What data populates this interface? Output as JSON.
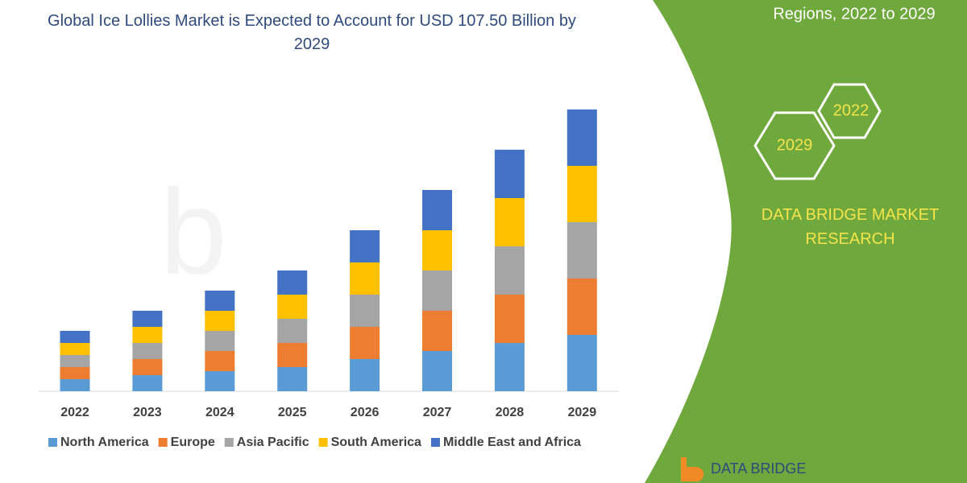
{
  "chart_data": {
    "type": "stacked-bar",
    "title": "Global Ice Lollies Market is Expected to Account for USD 107.50 Billion by 2029",
    "categories": [
      "2022",
      "2023",
      "2024",
      "2025",
      "2026",
      "2027",
      "2028",
      "2029"
    ],
    "series": [
      {
        "name": "North America",
        "color": "#5b9bd5",
        "values": [
          15,
          20,
          25,
          30,
          40,
          50,
          60,
          70
        ]
      },
      {
        "name": "Europe",
        "color": "#ed7d31",
        "values": [
          15,
          20,
          25,
          30,
          40,
          50,
          60,
          70
        ]
      },
      {
        "name": "Asia Pacific",
        "color": "#a5a5a5",
        "values": [
          15,
          20,
          25,
          30,
          40,
          50,
          60,
          70
        ]
      },
      {
        "name": "South America",
        "color": "#ffc000",
        "values": [
          15,
          20,
          25,
          30,
          40,
          50,
          60,
          70
        ]
      },
      {
        "name": "Middle East and Africa",
        "color": "#4472c4",
        "values": [
          15,
          20,
          25,
          30,
          40,
          50,
          60,
          70
        ]
      }
    ],
    "ylim": [
      0,
      400
    ],
    "legend": "bottom"
  },
  "banner": {
    "heading": "Regions, 2022 to 2029",
    "hexagons": [
      "2022",
      "2029"
    ],
    "brand": "DATA BRIDGE MARKET RESEARCH",
    "logo": "DATA BRIDGE"
  }
}
